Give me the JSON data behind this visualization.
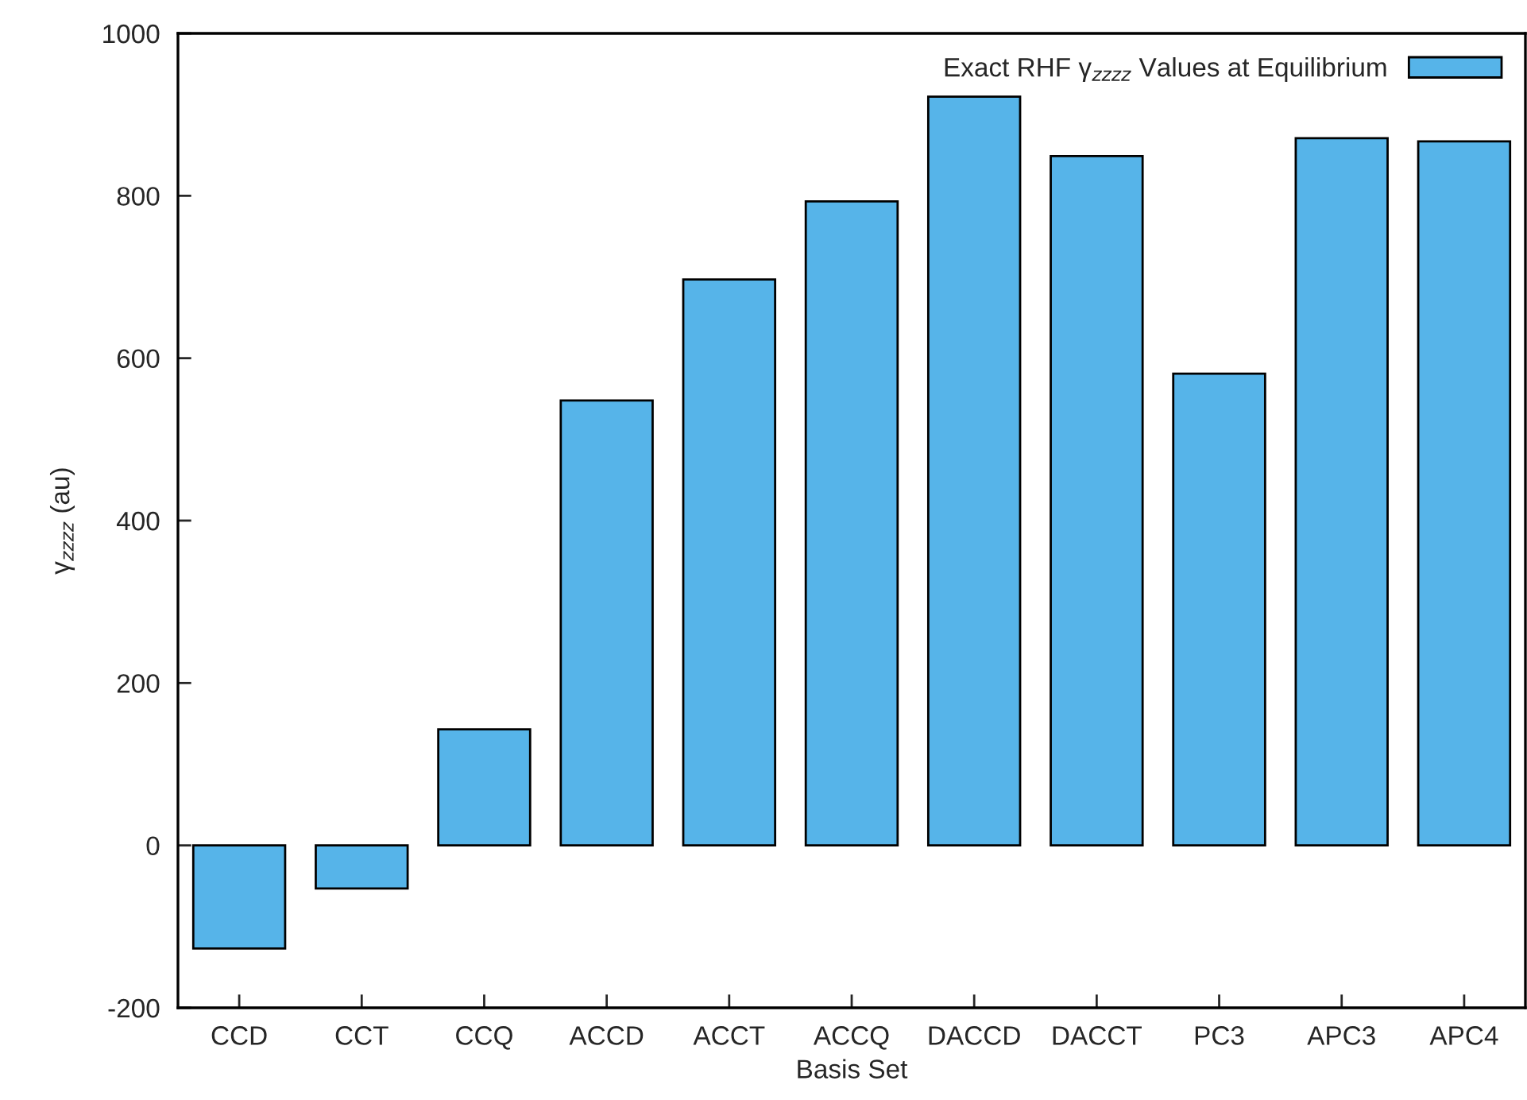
{
  "chart_data": {
    "type": "bar",
    "xlabel": "Basis Set",
    "ylabel": "γ$_{zzzz}$ (au)",
    "categories": [
      "CCD",
      "CCT",
      "CCQ",
      "ACCD",
      "ACCT",
      "ACCQ",
      "DACCD",
      "DACCT",
      "PC3",
      "APC3",
      "APC4"
    ],
    "series": [
      {
        "name": "Exact RHF γ$_{zzzz}$ Values at Equilibrium",
        "color": "#56b4e9",
        "values": [
          -127,
          -53,
          143,
          548,
          697,
          793,
          922,
          849,
          581,
          871,
          867
        ]
      }
    ],
    "ylim": [
      -200,
      1000
    ],
    "yticks": [
      -200,
      0,
      200,
      400,
      600,
      800,
      1000
    ],
    "grid": false,
    "legend": "top right"
  }
}
